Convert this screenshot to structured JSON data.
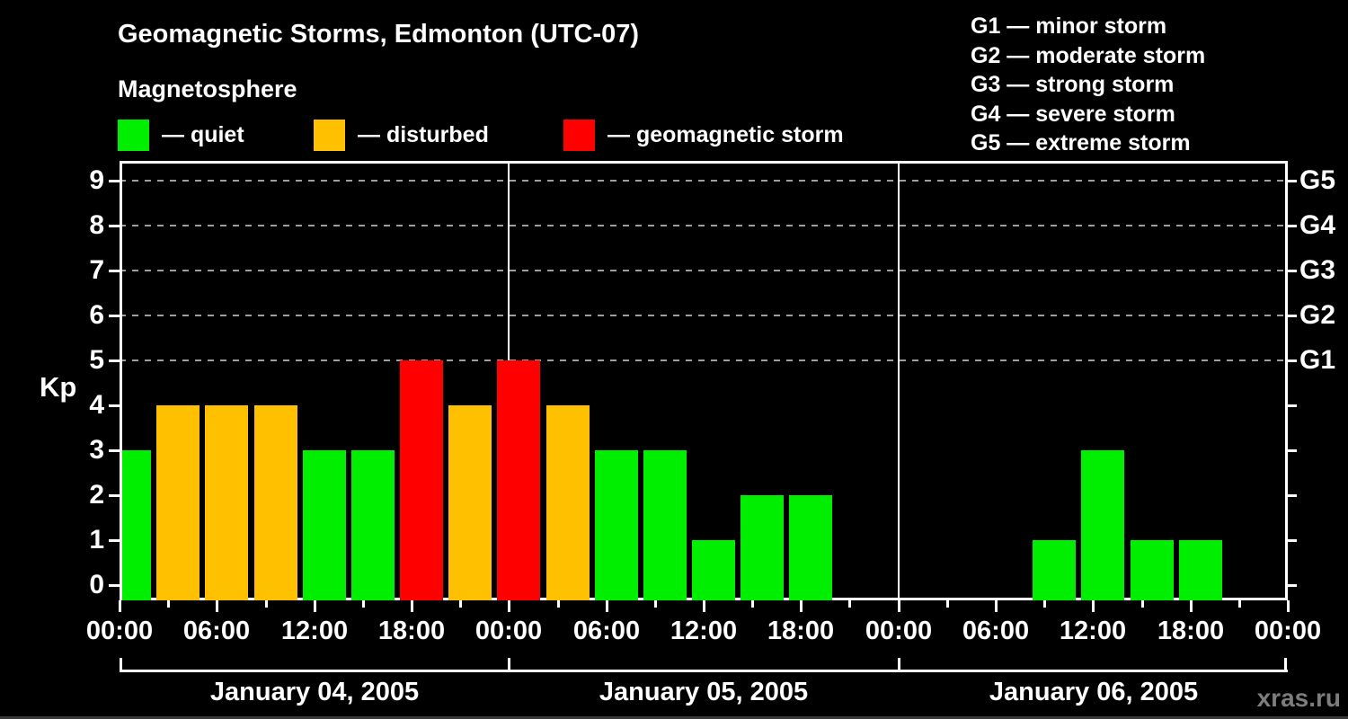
{
  "title": "Geomagnetic Storms, Edmonton (UTC-07)",
  "subtitle": "Magnetosphere",
  "legend": {
    "items": [
      {
        "key": "quiet",
        "label": "— quiet",
        "color": "#00ee00"
      },
      {
        "key": "disturbed",
        "label": "— disturbed",
        "color": "#ffc000"
      },
      {
        "key": "storm",
        "label": "— geomagnetic storm",
        "color": "#ff0000"
      }
    ]
  },
  "g_scale_legend": [
    "G1 — minor storm",
    "G2 — moderate storm",
    "G3 — strong storm",
    "G4 — severe storm",
    "G5 — extreme storm"
  ],
  "watermark": "xras.ru",
  "chart_data": {
    "type": "bar",
    "title": "Geomagnetic Storms, Edmonton (UTC-07)",
    "subtitle": "Magnetosphere",
    "ylabel": "Kp",
    "ylim": [
      0,
      9
    ],
    "y_ticks": [
      0,
      1,
      2,
      3,
      4,
      5,
      6,
      7,
      8,
      9
    ],
    "gridlines_at": [
      5,
      6,
      7,
      8,
      9
    ],
    "grid_style": "dashed",
    "legend_position": "top",
    "right_axis": [
      {
        "kp": 5,
        "label": "G1"
      },
      {
        "kp": 6,
        "label": "G2"
      },
      {
        "kp": 7,
        "label": "G3"
      },
      {
        "kp": 8,
        "label": "G4"
      },
      {
        "kp": 9,
        "label": "G5"
      }
    ],
    "x_tick_labels": [
      "00:00",
      "06:00",
      "12:00",
      "18:00",
      "00:00",
      "06:00",
      "12:00",
      "18:00",
      "00:00",
      "06:00",
      "12:00",
      "18:00",
      "00:00"
    ],
    "slot_start_hours": [
      0,
      3,
      6,
      9,
      12,
      15,
      18,
      21
    ],
    "days": [
      {
        "date": "January 04, 2005",
        "kp": [
          3,
          4,
          4,
          4,
          3,
          3,
          5,
          4
        ],
        "status": [
          "quiet",
          "disturbed",
          "disturbed",
          "disturbed",
          "quiet",
          "quiet",
          "storm",
          "disturbed"
        ]
      },
      {
        "date": "January 05, 2005",
        "kp": [
          5,
          4,
          3,
          3,
          1,
          2,
          2,
          0
        ],
        "status": [
          "storm",
          "disturbed",
          "quiet",
          "quiet",
          "quiet",
          "quiet",
          "quiet",
          "none"
        ]
      },
      {
        "date": "January 06, 2005",
        "kp": [
          0,
          0,
          0,
          1,
          3,
          1,
          1,
          0
        ],
        "status": [
          "none",
          "none",
          "none",
          "quiet",
          "quiet",
          "quiet",
          "quiet",
          "none"
        ]
      }
    ],
    "colors": {
      "quiet": "#00ee00",
      "disturbed": "#ffc000",
      "storm": "#ff0000"
    }
  }
}
